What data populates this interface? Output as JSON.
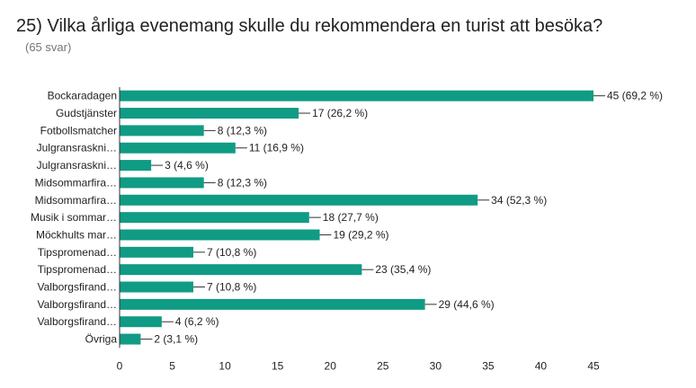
{
  "title": "25) Vilka årliga evenemang skulle du rekommendera en turist att besöka?",
  "subtitle": "(65 svar)",
  "colors": {
    "bar": "#109b84",
    "axis": "#333333",
    "text": "#222222",
    "leader": "#333333"
  },
  "chart_data": {
    "type": "bar",
    "orientation": "horizontal",
    "categories": [
      "Bockaradagen",
      "Gudstjänster",
      "Fotbollsmatcher",
      "Julgransraskni…",
      "Julgransraskni…",
      "Midsommarfira…",
      "Midsommarfira…",
      "Musik i sommar…",
      "Möckhults mar…",
      "Tipspromenad…",
      "Tipspromenad…",
      "Valborgsfirand…",
      "Valborgsfirand…",
      "Valborgsfirand…",
      "Övriga"
    ],
    "values": [
      45,
      17,
      8,
      11,
      3,
      8,
      34,
      18,
      19,
      7,
      23,
      7,
      29,
      4,
      2
    ],
    "value_labels": [
      "45 (69,2 %)",
      "17 (26,2 %)",
      "8 (12,3 %)",
      "11 (16,9 %)",
      "3 (4,6 %)",
      "8 (12,3 %)",
      "34 (52,3 %)",
      "18 (27,7 %)",
      "19 (29,2 %)",
      "7 (10,8 %)",
      "23 (35,4 %)",
      "7 (10,8 %)",
      "29 (44,6 %)",
      "4 (6,2 %)",
      "2 (3,1 %)"
    ],
    "xlim": [
      0,
      45
    ],
    "xticks": [
      0,
      5,
      10,
      15,
      20,
      25,
      30,
      35,
      40,
      45
    ],
    "grid": false
  }
}
